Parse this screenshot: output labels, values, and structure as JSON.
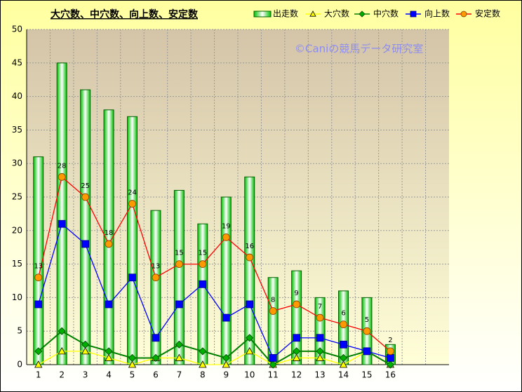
{
  "chart_data": {
    "type": "bar",
    "title": "大穴数、中穴数、向上数、安定数",
    "watermark": "©Caniの競馬データ研究室",
    "categories": [
      "1",
      "2",
      "3",
      "4",
      "5",
      "6",
      "7",
      "8",
      "9",
      "10",
      "11",
      "12",
      "13",
      "14",
      "15",
      "16",
      null,
      null
    ],
    "ylim": [
      0,
      50
    ],
    "yticks": [
      0,
      5,
      10,
      15,
      20,
      25,
      30,
      35,
      40,
      45,
      50
    ],
    "grid": true,
    "legend": "top-right",
    "series": [
      {
        "name": "出走数",
        "type": "bar",
        "color": "#00b000",
        "values": [
          31,
          45,
          41,
          38,
          37,
          23,
          26,
          21,
          25,
          28,
          13,
          14,
          10,
          11,
          10,
          3,
          null,
          null
        ]
      },
      {
        "name": "大穴数",
        "type": "line",
        "marker": "triangle",
        "color": "#ffff00",
        "marker_color": "#ffff00",
        "values": [
          0,
          2,
          2,
          1,
          0,
          1,
          1,
          0,
          0,
          2,
          0,
          1,
          1,
          0,
          2,
          0,
          null,
          null
        ]
      },
      {
        "name": "中穴数",
        "type": "line",
        "marker": "diamond",
        "color": "#008000",
        "marker_color": "#00b000",
        "values": [
          2,
          5,
          3,
          2,
          1,
          1,
          3,
          2,
          1,
          4,
          0,
          2,
          2,
          1,
          2,
          0,
          null,
          null
        ]
      },
      {
        "name": "向上数",
        "type": "line",
        "marker": "square",
        "color": "#0000ff",
        "marker_color": "#0000ff",
        "values": [
          9,
          21,
          18,
          9,
          13,
          4,
          9,
          12,
          7,
          9,
          1,
          4,
          4,
          3,
          2,
          1,
          null,
          null
        ]
      },
      {
        "name": "安定数",
        "type": "line",
        "marker": "circle",
        "color": "#ff0000",
        "marker_color": "#ff9900",
        "data_labels": true,
        "values": [
          13,
          28,
          25,
          18,
          24,
          13,
          15,
          15,
          19,
          16,
          8,
          9,
          7,
          6,
          5,
          2,
          null,
          null
        ]
      }
    ]
  }
}
